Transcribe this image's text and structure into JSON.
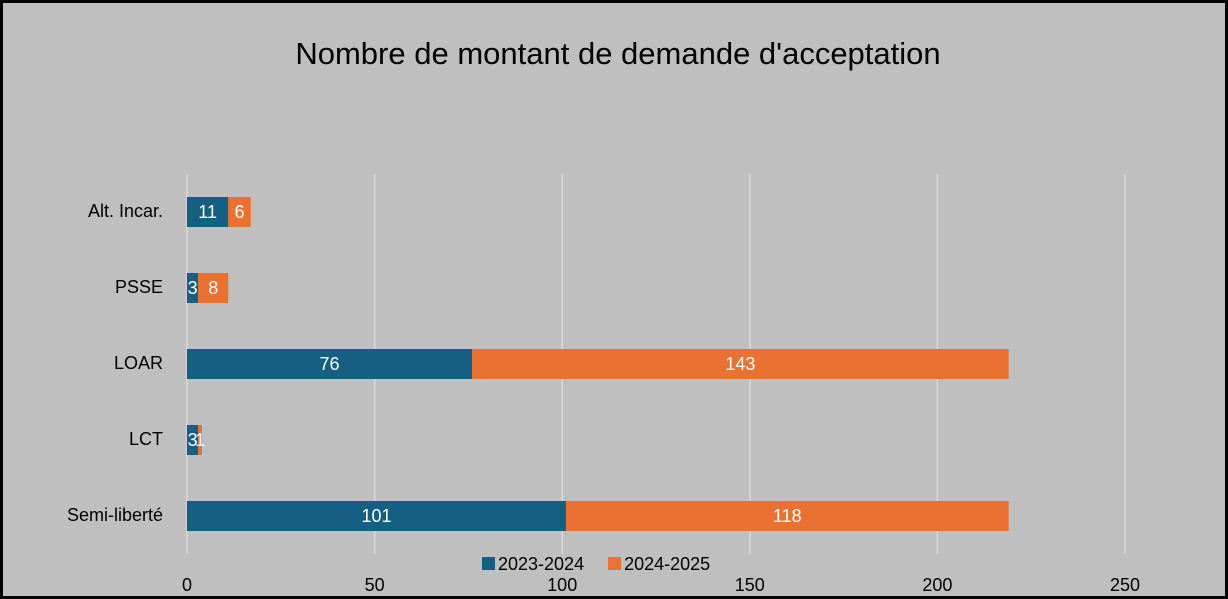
{
  "chart_data": {
    "type": "bar",
    "orientation": "horizontal",
    "stacked": true,
    "title": "Nombre de montant de demande d'acceptation",
    "categories": [
      "Alt. Incar.",
      "PSSE",
      "LOAR",
      "LCT",
      "Semi-liberté"
    ],
    "series": [
      {
        "name": "2023-2024",
        "color": "#156082",
        "values": [
          11,
          3,
          76,
          3,
          101
        ]
      },
      {
        "name": "2024-2025",
        "color": "#e97132",
        "values": [
          6,
          8,
          143,
          1,
          118
        ]
      }
    ],
    "xlim": [
      0,
      250
    ],
    "xticks": [
      0,
      50,
      100,
      150,
      200,
      250
    ],
    "grid": true,
    "legend": "bottom",
    "data_labels": true
  }
}
